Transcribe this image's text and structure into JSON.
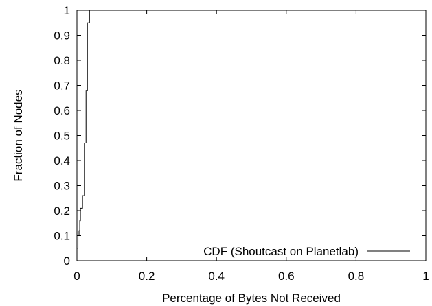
{
  "chart_data": {
    "type": "line",
    "title": "",
    "xlabel": "Percentage of Bytes Not Received",
    "ylabel": "Fraction of Nodes",
    "xlim": [
      0,
      1
    ],
    "ylim": [
      0,
      1
    ],
    "x_ticks": [
      "0",
      "0.2",
      "0.4",
      "0.6",
      "0.8",
      "1"
    ],
    "y_ticks": [
      "0",
      "0.1",
      "0.2",
      "0.3",
      "0.4",
      "0.5",
      "0.6",
      "0.7",
      "0.8",
      "0.9",
      "1"
    ],
    "grid": false,
    "legend_position": "bottom-right",
    "series": [
      {
        "name": "CDF (Shoutcast on Planetlab)",
        "color": "#000000",
        "step": true,
        "points": [
          [
            0,
            0.05
          ],
          [
            0.003,
            0.1
          ],
          [
            0.006,
            0.12
          ],
          [
            0.008,
            0.16
          ],
          [
            0.01,
            0.21
          ],
          [
            0.014,
            0.21
          ],
          [
            0.016,
            0.26
          ],
          [
            0.02,
            0.26
          ],
          [
            0.022,
            0.47
          ],
          [
            0.025,
            0.47
          ],
          [
            0.026,
            0.68
          ],
          [
            0.028,
            0.68
          ],
          [
            0.03,
            0.95
          ],
          [
            0.033,
            0.95
          ],
          [
            0.036,
            1.0
          ],
          [
            1.0,
            1.0
          ]
        ]
      }
    ]
  }
}
